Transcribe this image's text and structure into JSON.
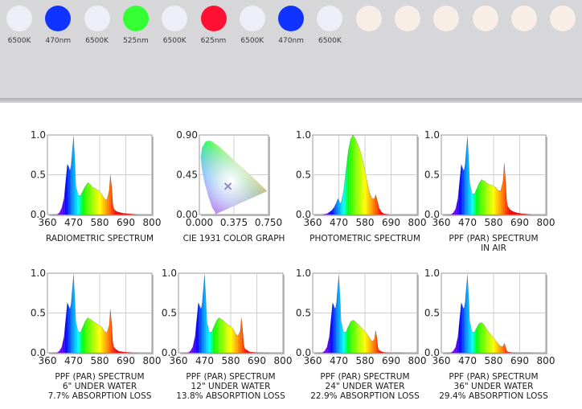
{
  "leds": [
    {
      "label": "6500K",
      "color": "#eeeef9"
    },
    {
      "label": "470nm",
      "color": "#1133ff"
    },
    {
      "label": "6500K",
      "color": "#eeeef9"
    },
    {
      "label": "525nm",
      "color": "#33ff33"
    },
    {
      "label": "6500K",
      "color": "#eeeef9"
    },
    {
      "label": "625nm",
      "color": "#ff1133"
    },
    {
      "label": "6500K",
      "color": "#eeeef9"
    },
    {
      "label": "470nm",
      "color": "#1133ff"
    },
    {
      "label": "6500K",
      "color": "#eeeef9"
    },
    {
      "label": "",
      "color": "#f8eee6"
    },
    {
      "label": "",
      "color": "#f8eee6"
    },
    {
      "label": "",
      "color": "#f8eee6"
    },
    {
      "label": "",
      "color": "#f8eee6"
    },
    {
      "label": "",
      "color": "#f8eee6"
    },
    {
      "label": "",
      "color": "#f8eee6"
    }
  ],
  "chart_data": [
    {
      "type": "area",
      "id": "radiometric",
      "caption": [
        "RADIOMETRIC SPECTRUM"
      ],
      "xlim": [
        360,
        800
      ],
      "ylim": [
        0,
        1
      ],
      "xticks": [
        "360",
        "470",
        "580",
        "690",
        "800"
      ],
      "yticks": [
        "0.0",
        "0.5",
        "1.0"
      ],
      "x": [
        380,
        400,
        410,
        420,
        430,
        438,
        444,
        450,
        455,
        460,
        466,
        470,
        475,
        480,
        490,
        500,
        510,
        520,
        530,
        540,
        550,
        560,
        570,
        580,
        590,
        600,
        610,
        620,
        625,
        630,
        635,
        640,
        650,
        660,
        680,
        700,
        720,
        740
      ],
      "y": [
        0,
        0,
        0.02,
        0.08,
        0.2,
        0.45,
        0.63,
        0.6,
        0.55,
        0.62,
        0.85,
        0.97,
        0.7,
        0.35,
        0.24,
        0.24,
        0.3,
        0.36,
        0.4,
        0.38,
        0.34,
        0.33,
        0.31,
        0.29,
        0.25,
        0.2,
        0.18,
        0.3,
        0.5,
        0.36,
        0.14,
        0.07,
        0.04,
        0.03,
        0.015,
        0.01,
        0.005,
        0
      ]
    },
    {
      "type": "scatter",
      "id": "cie",
      "caption": [
        "CIE 1931 COLOR GRAPH"
      ],
      "xlim": [
        0,
        0.75
      ],
      "ylim": [
        0,
        0.9
      ],
      "xticks": [
        "0.000",
        "0.375",
        "0.750"
      ],
      "yticks": [
        "0.00",
        "0.45",
        "0.90"
      ],
      "point": [
        0.31,
        0.32
      ]
    },
    {
      "type": "area",
      "id": "photometric",
      "caption": [
        "PHOTOMETRIC SPECTRUM"
      ],
      "xlim": [
        360,
        800
      ],
      "ylim": [
        0,
        1
      ],
      "xticks": [
        "360",
        "470",
        "580",
        "690",
        "800"
      ],
      "yticks": [
        "0.0",
        "0.5",
        "1.0"
      ],
      "x": [
        400,
        420,
        440,
        450,
        460,
        466,
        470,
        475,
        480,
        490,
        500,
        510,
        520,
        530,
        540,
        550,
        560,
        570,
        580,
        590,
        600,
        610,
        620,
        625,
        630,
        640,
        650,
        660,
        680
      ],
      "y": [
        0,
        0.01,
        0.05,
        0.09,
        0.15,
        0.2,
        0.18,
        0.14,
        0.15,
        0.3,
        0.55,
        0.8,
        0.95,
        1.0,
        0.95,
        0.88,
        0.8,
        0.7,
        0.55,
        0.4,
        0.27,
        0.2,
        0.2,
        0.25,
        0.2,
        0.08,
        0.03,
        0.01,
        0
      ]
    },
    {
      "type": "area",
      "id": "par-air",
      "caption": [
        "PPF (PAR) SPECTRUM",
        "IN AIR"
      ],
      "xlim": [
        360,
        800
      ],
      "ylim": [
        0,
        1
      ],
      "xticks": [
        "360",
        "470",
        "580",
        "690",
        "800"
      ],
      "yticks": [
        "0.0",
        "0.5",
        "1.0"
      ],
      "x": [
        380,
        400,
        410,
        420,
        430,
        438,
        444,
        450,
        455,
        460,
        466,
        470,
        475,
        480,
        490,
        500,
        510,
        520,
        530,
        540,
        550,
        560,
        570,
        580,
        590,
        600,
        610,
        620,
        625,
        630,
        635,
        640,
        650,
        660,
        680,
        700,
        720,
        740
      ],
      "y": [
        0,
        0,
        0.02,
        0.07,
        0.2,
        0.45,
        0.63,
        0.58,
        0.55,
        0.62,
        0.85,
        0.97,
        0.7,
        0.38,
        0.26,
        0.26,
        0.33,
        0.4,
        0.44,
        0.42,
        0.4,
        0.38,
        0.37,
        0.36,
        0.34,
        0.3,
        0.3,
        0.42,
        0.65,
        0.45,
        0.18,
        0.1,
        0.06,
        0.04,
        0.02,
        0.01,
        0.005,
        0
      ]
    },
    {
      "type": "area",
      "id": "par-6in",
      "caption": [
        "PPF (PAR) SPECTRUM",
        "6\" UNDER WATER",
        "7.7% ABSORPTION LOSS"
      ],
      "xlim": [
        360,
        800
      ],
      "ylim": [
        0,
        1
      ],
      "xticks": [
        "360",
        "470",
        "580",
        "690",
        "800"
      ],
      "yticks": [
        "0.0",
        "0.5",
        "1.0"
      ],
      "x": [
        380,
        400,
        410,
        420,
        430,
        438,
        444,
        450,
        455,
        460,
        466,
        470,
        475,
        480,
        490,
        500,
        510,
        520,
        530,
        540,
        550,
        560,
        570,
        580,
        590,
        600,
        610,
        620,
        625,
        630,
        635,
        640,
        650,
        660,
        680,
        700,
        720,
        740
      ],
      "y": [
        0,
        0,
        0.02,
        0.07,
        0.2,
        0.45,
        0.63,
        0.58,
        0.55,
        0.62,
        0.85,
        0.97,
        0.7,
        0.38,
        0.26,
        0.26,
        0.33,
        0.4,
        0.44,
        0.42,
        0.4,
        0.38,
        0.36,
        0.34,
        0.32,
        0.27,
        0.25,
        0.34,
        0.55,
        0.38,
        0.14,
        0.07,
        0.04,
        0.02,
        0.01,
        0.005,
        0,
        0
      ]
    },
    {
      "type": "area",
      "id": "par-12in",
      "caption": [
        "PPF (PAR) SPECTRUM",
        "12\" UNDER WATER",
        "13.8% ABSORPTION LOSS"
      ],
      "xlim": [
        360,
        800
      ],
      "ylim": [
        0,
        1
      ],
      "xticks": [
        "360",
        "470",
        "580",
        "690",
        "800"
      ],
      "yticks": [
        "0.0",
        "0.5",
        "1.0"
      ],
      "x": [
        380,
        400,
        410,
        420,
        430,
        438,
        444,
        450,
        455,
        460,
        466,
        470,
        475,
        480,
        490,
        500,
        510,
        520,
        530,
        540,
        550,
        560,
        570,
        580,
        590,
        600,
        610,
        620,
        625,
        630,
        635,
        640,
        650,
        660,
        680,
        700,
        720,
        740
      ],
      "y": [
        0,
        0,
        0.02,
        0.07,
        0.2,
        0.45,
        0.63,
        0.58,
        0.55,
        0.62,
        0.85,
        0.97,
        0.7,
        0.38,
        0.26,
        0.26,
        0.33,
        0.4,
        0.44,
        0.42,
        0.4,
        0.37,
        0.35,
        0.33,
        0.3,
        0.24,
        0.21,
        0.27,
        0.44,
        0.3,
        0.1,
        0.05,
        0.03,
        0.01,
        0.005,
        0,
        0,
        0
      ]
    },
    {
      "type": "area",
      "id": "par-24in",
      "caption": [
        "PPF (PAR) SPECTRUM",
        "24\" UNDER WATER",
        "22.9% ABSORPTION LOSS"
      ],
      "xlim": [
        360,
        800
      ],
      "ylim": [
        0,
        1
      ],
      "xticks": [
        "360",
        "470",
        "580",
        "690",
        "800"
      ],
      "yticks": [
        "0.0",
        "0.5",
        "1.0"
      ],
      "x": [
        380,
        400,
        410,
        420,
        430,
        438,
        444,
        450,
        455,
        460,
        466,
        470,
        475,
        480,
        490,
        500,
        510,
        520,
        530,
        540,
        550,
        560,
        570,
        580,
        590,
        600,
        610,
        620,
        625,
        630,
        635,
        640,
        650,
        660,
        680,
        700,
        720,
        740
      ],
      "y": [
        0,
        0,
        0.02,
        0.07,
        0.2,
        0.45,
        0.63,
        0.58,
        0.55,
        0.62,
        0.85,
        0.97,
        0.7,
        0.38,
        0.26,
        0.26,
        0.33,
        0.39,
        0.41,
        0.39,
        0.36,
        0.33,
        0.3,
        0.27,
        0.23,
        0.18,
        0.14,
        0.17,
        0.28,
        0.2,
        0.06,
        0.03,
        0.015,
        0.005,
        0,
        0,
        0,
        0
      ]
    },
    {
      "type": "area",
      "id": "par-36in",
      "caption": [
        "PPF (PAR) SPECTRUM",
        "36\" UNDER WATER",
        "29.4% ABSORPTION LOSS"
      ],
      "xlim": [
        360,
        800
      ],
      "ylim": [
        0,
        1
      ],
      "xticks": [
        "360",
        "470",
        "580",
        "690",
        "800"
      ],
      "yticks": [
        "0.0",
        "0.5",
        "1.0"
      ],
      "x": [
        380,
        400,
        410,
        420,
        430,
        438,
        444,
        450,
        455,
        460,
        466,
        470,
        475,
        480,
        490,
        500,
        510,
        520,
        530,
        540,
        550,
        560,
        570,
        580,
        590,
        600,
        610,
        620,
        625,
        630,
        635,
        640,
        650,
        660,
        680,
        700,
        720,
        740
      ],
      "y": [
        0,
        0,
        0.02,
        0.07,
        0.2,
        0.45,
        0.63,
        0.58,
        0.55,
        0.62,
        0.85,
        0.97,
        0.7,
        0.38,
        0.26,
        0.26,
        0.32,
        0.37,
        0.38,
        0.35,
        0.3,
        0.26,
        0.22,
        0.19,
        0.15,
        0.11,
        0.08,
        0.08,
        0.12,
        0.08,
        0.03,
        0.01,
        0.005,
        0,
        0,
        0,
        0,
        0
      ]
    }
  ]
}
